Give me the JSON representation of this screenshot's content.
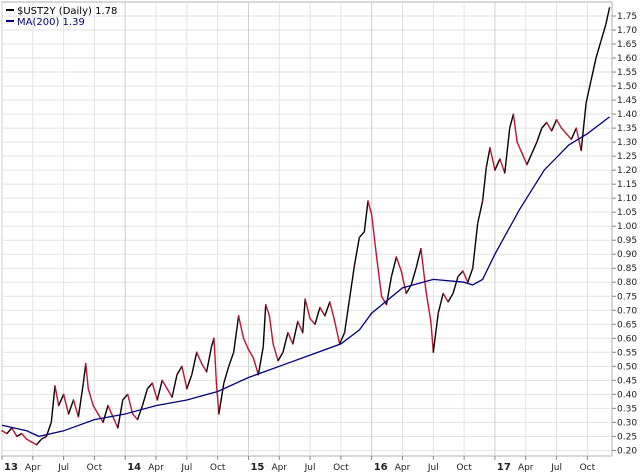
{
  "chart_data": {
    "type": "line",
    "title": "",
    "xlabel": "",
    "ylabel": "",
    "ylim": [
      0.18,
      1.8
    ],
    "y_ticks": [
      0.2,
      0.25,
      0.3,
      0.35,
      0.4,
      0.45,
      0.5,
      0.55,
      0.6,
      0.65,
      0.7,
      0.75,
      0.8,
      0.85,
      0.9,
      0.95,
      1.0,
      1.05,
      1.1,
      1.15,
      1.2,
      1.25,
      1.3,
      1.35,
      1.4,
      1.45,
      1.5,
      1.55,
      1.6,
      1.65,
      1.7,
      1.75
    ],
    "y_tick_labels": [
      "0.20",
      "0.25",
      "0.30",
      "0.35",
      "0.40",
      "0.45",
      "0.50",
      "0.55",
      "0.60",
      "0.65",
      "0.70",
      "0.75",
      "0.80",
      "0.85",
      "0.90",
      "0.95",
      "1.00",
      "1.05",
      "1.10",
      "1.15",
      "1.20",
      "1.25",
      "1.30",
      "1.35",
      "1.40",
      "1.45",
      "1.50",
      "1.55",
      "1.60",
      "1.65",
      "1.70",
      "1.75"
    ],
    "x_range": [
      2013.0,
      2017.95
    ],
    "x_ticks": [
      {
        "t": 2013.0,
        "label": "13",
        "year": true
      },
      {
        "t": 2013.25,
        "label": "Apr",
        "year": false
      },
      {
        "t": 2013.5,
        "label": "Jul",
        "year": false
      },
      {
        "t": 2013.75,
        "label": "Oct",
        "year": false
      },
      {
        "t": 2014.0,
        "label": "14",
        "year": true
      },
      {
        "t": 2014.25,
        "label": "Apr",
        "year": false
      },
      {
        "t": 2014.5,
        "label": "Jul",
        "year": false
      },
      {
        "t": 2014.75,
        "label": "Oct",
        "year": false
      },
      {
        "t": 2015.0,
        "label": "15",
        "year": true
      },
      {
        "t": 2015.25,
        "label": "Apr",
        "year": false
      },
      {
        "t": 2015.5,
        "label": "Jul",
        "year": false
      },
      {
        "t": 2015.75,
        "label": "Oct",
        "year": false
      },
      {
        "t": 2016.0,
        "label": "16",
        "year": true
      },
      {
        "t": 2016.25,
        "label": "Apr",
        "year": false
      },
      {
        "t": 2016.5,
        "label": "Jul",
        "year": false
      },
      {
        "t": 2016.75,
        "label": "Oct",
        "year": false
      },
      {
        "t": 2017.0,
        "label": "17",
        "year": true
      },
      {
        "t": 2017.25,
        "label": "Apr",
        "year": false
      },
      {
        "t": 2017.5,
        "label": "Jul",
        "year": false
      },
      {
        "t": 2017.75,
        "label": "Oct",
        "year": false
      }
    ],
    "grid": true,
    "legend_position": "top-left",
    "series": [
      {
        "name": "$UST2Y (Daily) 1.78",
        "color_up": "#000000",
        "color_down": "#c8102e",
        "points": [
          [
            2013.0,
            0.27
          ],
          [
            2013.04,
            0.26
          ],
          [
            2013.08,
            0.28
          ],
          [
            2013.12,
            0.25
          ],
          [
            2013.16,
            0.26
          ],
          [
            2013.2,
            0.24
          ],
          [
            2013.24,
            0.23
          ],
          [
            2013.28,
            0.22
          ],
          [
            2013.32,
            0.24
          ],
          [
            2013.36,
            0.25
          ],
          [
            2013.4,
            0.3
          ],
          [
            2013.43,
            0.43
          ],
          [
            2013.46,
            0.36
          ],
          [
            2013.5,
            0.4
          ],
          [
            2013.54,
            0.33
          ],
          [
            2013.58,
            0.38
          ],
          [
            2013.62,
            0.32
          ],
          [
            2013.66,
            0.44
          ],
          [
            2013.68,
            0.51
          ],
          [
            2013.7,
            0.42
          ],
          [
            2013.74,
            0.36
          ],
          [
            2013.78,
            0.33
          ],
          [
            2013.82,
            0.3
          ],
          [
            2013.86,
            0.36
          ],
          [
            2013.9,
            0.32
          ],
          [
            2013.94,
            0.28
          ],
          [
            2013.98,
            0.38
          ],
          [
            2014.02,
            0.4
          ],
          [
            2014.06,
            0.33
          ],
          [
            2014.1,
            0.31
          ],
          [
            2014.14,
            0.36
          ],
          [
            2014.18,
            0.42
          ],
          [
            2014.22,
            0.44
          ],
          [
            2014.26,
            0.38
          ],
          [
            2014.3,
            0.45
          ],
          [
            2014.34,
            0.42
          ],
          [
            2014.38,
            0.39
          ],
          [
            2014.42,
            0.47
          ],
          [
            2014.46,
            0.5
          ],
          [
            2014.5,
            0.42
          ],
          [
            2014.54,
            0.47
          ],
          [
            2014.58,
            0.55
          ],
          [
            2014.62,
            0.51
          ],
          [
            2014.66,
            0.48
          ],
          [
            2014.7,
            0.57
          ],
          [
            2014.72,
            0.6
          ],
          [
            2014.74,
            0.44
          ],
          [
            2014.76,
            0.33
          ],
          [
            2014.8,
            0.44
          ],
          [
            2014.84,
            0.5
          ],
          [
            2014.88,
            0.55
          ],
          [
            2014.92,
            0.68
          ],
          [
            2014.96,
            0.6
          ],
          [
            2015.0,
            0.56
          ],
          [
            2015.04,
            0.53
          ],
          [
            2015.08,
            0.47
          ],
          [
            2015.12,
            0.57
          ],
          [
            2015.14,
            0.72
          ],
          [
            2015.17,
            0.68
          ],
          [
            2015.2,
            0.58
          ],
          [
            2015.24,
            0.52
          ],
          [
            2015.28,
            0.55
          ],
          [
            2015.32,
            0.62
          ],
          [
            2015.36,
            0.58
          ],
          [
            2015.4,
            0.66
          ],
          [
            2015.44,
            0.62
          ],
          [
            2015.46,
            0.74
          ],
          [
            2015.5,
            0.67
          ],
          [
            2015.54,
            0.65
          ],
          [
            2015.58,
            0.71
          ],
          [
            2015.62,
            0.68
          ],
          [
            2015.66,
            0.73
          ],
          [
            2015.7,
            0.66
          ],
          [
            2015.74,
            0.58
          ],
          [
            2015.78,
            0.62
          ],
          [
            2015.82,
            0.74
          ],
          [
            2015.86,
            0.86
          ],
          [
            2015.9,
            0.96
          ],
          [
            2015.94,
            0.98
          ],
          [
            2015.97,
            1.09
          ],
          [
            2016.0,
            1.04
          ],
          [
            2016.04,
            0.89
          ],
          [
            2016.08,
            0.75
          ],
          [
            2016.12,
            0.72
          ],
          [
            2016.16,
            0.82
          ],
          [
            2016.2,
            0.89
          ],
          [
            2016.24,
            0.84
          ],
          [
            2016.28,
            0.76
          ],
          [
            2016.32,
            0.79
          ],
          [
            2016.36,
            0.85
          ],
          [
            2016.4,
            0.92
          ],
          [
            2016.44,
            0.77
          ],
          [
            2016.48,
            0.66
          ],
          [
            2016.5,
            0.55
          ],
          [
            2016.54,
            0.69
          ],
          [
            2016.58,
            0.76
          ],
          [
            2016.62,
            0.73
          ],
          [
            2016.66,
            0.76
          ],
          [
            2016.7,
            0.82
          ],
          [
            2016.74,
            0.84
          ],
          [
            2016.78,
            0.8
          ],
          [
            2016.82,
            0.85
          ],
          [
            2016.86,
            1.01
          ],
          [
            2016.9,
            1.09
          ],
          [
            2016.93,
            1.21
          ],
          [
            2016.96,
            1.28
          ],
          [
            2017.0,
            1.2
          ],
          [
            2017.04,
            1.24
          ],
          [
            2017.08,
            1.19
          ],
          [
            2017.12,
            1.35
          ],
          [
            2017.15,
            1.4
          ],
          [
            2017.18,
            1.3
          ],
          [
            2017.22,
            1.26
          ],
          [
            2017.26,
            1.22
          ],
          [
            2017.3,
            1.26
          ],
          [
            2017.34,
            1.3
          ],
          [
            2017.38,
            1.35
          ],
          [
            2017.42,
            1.37
          ],
          [
            2017.46,
            1.34
          ],
          [
            2017.5,
            1.38
          ],
          [
            2017.54,
            1.35
          ],
          [
            2017.58,
            1.33
          ],
          [
            2017.62,
            1.31
          ],
          [
            2017.66,
            1.35
          ],
          [
            2017.7,
            1.27
          ],
          [
            2017.74,
            1.44
          ],
          [
            2017.78,
            1.52
          ],
          [
            2017.82,
            1.6
          ],
          [
            2017.86,
            1.66
          ],
          [
            2017.9,
            1.72
          ],
          [
            2017.93,
            1.78
          ]
        ]
      },
      {
        "name": "MA(200) 1.39",
        "color": "#000080",
        "points": [
          [
            2013.0,
            0.29
          ],
          [
            2013.2,
            0.27
          ],
          [
            2013.3,
            0.25
          ],
          [
            2013.5,
            0.27
          ],
          [
            2013.75,
            0.31
          ],
          [
            2014.0,
            0.33
          ],
          [
            2014.25,
            0.36
          ],
          [
            2014.5,
            0.38
          ],
          [
            2014.75,
            0.41
          ],
          [
            2015.0,
            0.46
          ],
          [
            2015.25,
            0.5
          ],
          [
            2015.5,
            0.54
          ],
          [
            2015.75,
            0.58
          ],
          [
            2015.9,
            0.63
          ],
          [
            2016.0,
            0.69
          ],
          [
            2016.25,
            0.78
          ],
          [
            2016.5,
            0.81
          ],
          [
            2016.75,
            0.8
          ],
          [
            2016.82,
            0.79
          ],
          [
            2016.9,
            0.81
          ],
          [
            2017.0,
            0.9
          ],
          [
            2017.2,
            1.06
          ],
          [
            2017.4,
            1.2
          ],
          [
            2017.6,
            1.29
          ],
          [
            2017.75,
            1.33
          ],
          [
            2017.93,
            1.39
          ]
        ]
      }
    ]
  },
  "legend": {
    "series1_label": "$UST2Y (Daily) 1.78",
    "series2_label": "MA(200) 1.39",
    "series1_color": "#000000",
    "series2_color": "#000080"
  }
}
